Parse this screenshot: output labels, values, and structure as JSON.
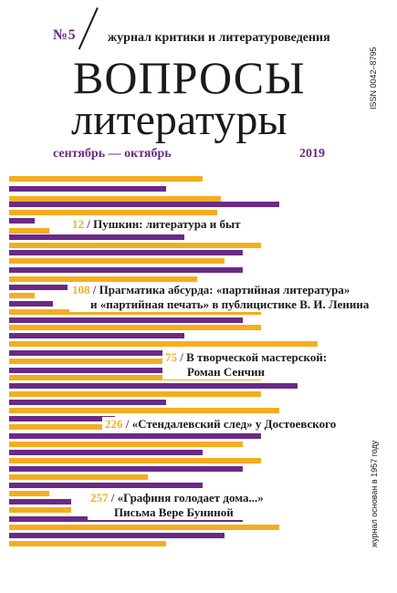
{
  "header": {
    "issue": "№5",
    "subtitle": "журнал критики и литературоведения",
    "title_line1": "ВОПРОСЫ",
    "title_line2": "литературы",
    "issn": "ISSN 0042–8795",
    "months": "сентябрь — октябрь",
    "year": "2019",
    "founded": "журнал основан в 1957 году"
  },
  "colors": {
    "accent_purple": "#6a2a86",
    "accent_yellow": "#f5ad1f"
  },
  "contents": [
    {
      "page": "12",
      "slash": "/",
      "text": "Пушкин: литература и быт"
    },
    {
      "page": "108",
      "slash": "/",
      "text": "Прагматика абсурда: «партийная литература»",
      "text2": "и «партийная печать» в публицистике В. И. Ленина"
    },
    {
      "page": "75",
      "slash": "/",
      "text": "В творческой мастерской:",
      "text2": "Роман Сенчин"
    },
    {
      "page": "226",
      "slash": "/",
      "text": "«Стендалевский след» у Достоевского"
    },
    {
      "page": "257",
      "slash": "/",
      "text": "«Графиня голодает дома...»",
      "text2": "Письма Вере Буниной"
    }
  ]
}
